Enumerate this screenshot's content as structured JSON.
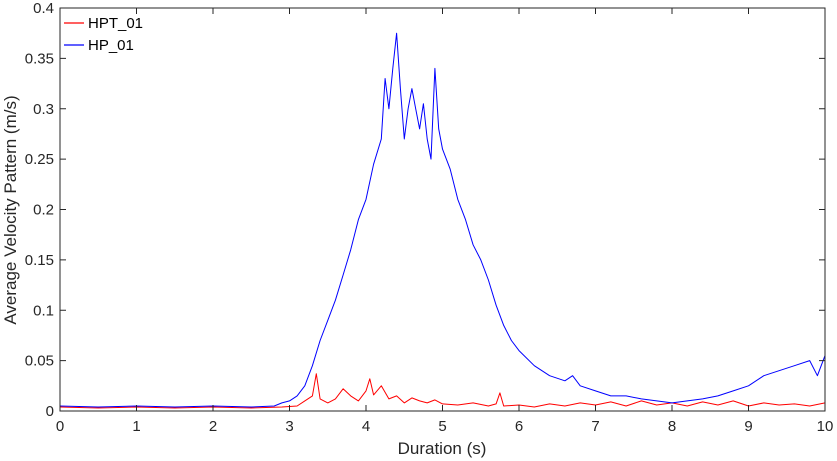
{
  "chart_data": {
    "type": "line",
    "title": "",
    "xlabel": "Duration (s)",
    "ylabel": "Average Velocity Pattern (m/s)",
    "xlim": [
      0,
      10
    ],
    "ylim": [
      0,
      0.4
    ],
    "x_ticks": [
      0,
      1,
      2,
      3,
      4,
      5,
      6,
      7,
      8,
      9,
      10
    ],
    "x_tick_labels": [
      "0",
      "1",
      "2",
      "3",
      "4",
      "5",
      "6",
      "7",
      "8",
      "9",
      "10"
    ],
    "y_ticks": [
      0,
      0.05,
      0.1,
      0.15,
      0.2,
      0.25,
      0.3,
      0.35,
      0.4
    ],
    "y_tick_labels": [
      "0",
      "0.05",
      "0.1",
      "0.15",
      "0.2",
      "0.25",
      "0.3",
      "0.35",
      "0.4"
    ],
    "grid": false,
    "legend_position": "top-left",
    "series": [
      {
        "name": "HPT_01",
        "color": "#ff0000",
        "x": [
          0,
          0.5,
          1,
          1.5,
          2,
          2.5,
          2.9,
          3.1,
          3.2,
          3.3,
          3.35,
          3.4,
          3.5,
          3.6,
          3.7,
          3.8,
          3.9,
          4.0,
          4.05,
          4.1,
          4.2,
          4.3,
          4.4,
          4.5,
          4.6,
          4.7,
          4.8,
          4.9,
          5.0,
          5.2,
          5.4,
          5.6,
          5.7,
          5.75,
          5.8,
          6.0,
          6.2,
          6.4,
          6.6,
          6.8,
          7.0,
          7.2,
          7.4,
          7.6,
          7.8,
          8.0,
          8.2,
          8.4,
          8.6,
          8.8,
          9.0,
          9.2,
          9.4,
          9.6,
          9.8,
          10
        ],
        "y": [
          0.004,
          0.003,
          0.004,
          0.003,
          0.004,
          0.003,
          0.004,
          0.005,
          0.01,
          0.015,
          0.037,
          0.012,
          0.008,
          0.012,
          0.022,
          0.015,
          0.01,
          0.02,
          0.032,
          0.016,
          0.025,
          0.012,
          0.015,
          0.008,
          0.013,
          0.01,
          0.008,
          0.011,
          0.007,
          0.006,
          0.008,
          0.005,
          0.007,
          0.018,
          0.005,
          0.006,
          0.004,
          0.007,
          0.005,
          0.008,
          0.006,
          0.009,
          0.005,
          0.01,
          0.006,
          0.008,
          0.005,
          0.009,
          0.006,
          0.01,
          0.005,
          0.008,
          0.006,
          0.007,
          0.005,
          0.008
        ]
      },
      {
        "name": "HP_01",
        "color": "#0000ff",
        "x": [
          0,
          0.5,
          1,
          1.5,
          2,
          2.5,
          2.8,
          2.9,
          3.0,
          3.1,
          3.2,
          3.3,
          3.4,
          3.5,
          3.6,
          3.7,
          3.8,
          3.9,
          4.0,
          4.1,
          4.2,
          4.25,
          4.3,
          4.35,
          4.4,
          4.45,
          4.5,
          4.55,
          4.6,
          4.65,
          4.7,
          4.75,
          4.8,
          4.85,
          4.9,
          4.95,
          5.0,
          5.1,
          5.2,
          5.3,
          5.4,
          5.5,
          5.6,
          5.7,
          5.8,
          5.9,
          6.0,
          6.2,
          6.4,
          6.6,
          6.7,
          6.8,
          7.0,
          7.2,
          7.4,
          7.6,
          7.8,
          8.0,
          8.2,
          8.4,
          8.6,
          8.8,
          9.0,
          9.2,
          9.4,
          9.6,
          9.8,
          9.9,
          10
        ],
        "y": [
          0.005,
          0.004,
          0.005,
          0.004,
          0.005,
          0.004,
          0.005,
          0.008,
          0.01,
          0.015,
          0.025,
          0.045,
          0.07,
          0.09,
          0.11,
          0.135,
          0.16,
          0.19,
          0.21,
          0.245,
          0.27,
          0.33,
          0.3,
          0.34,
          0.375,
          0.32,
          0.27,
          0.3,
          0.32,
          0.3,
          0.28,
          0.305,
          0.27,
          0.25,
          0.34,
          0.28,
          0.26,
          0.24,
          0.21,
          0.19,
          0.165,
          0.15,
          0.13,
          0.105,
          0.085,
          0.07,
          0.06,
          0.045,
          0.035,
          0.03,
          0.035,
          0.025,
          0.02,
          0.015,
          0.015,
          0.012,
          0.01,
          0.008,
          0.01,
          0.012,
          0.015,
          0.02,
          0.025,
          0.035,
          0.04,
          0.045,
          0.05,
          0.035,
          0.055
        ]
      }
    ]
  }
}
